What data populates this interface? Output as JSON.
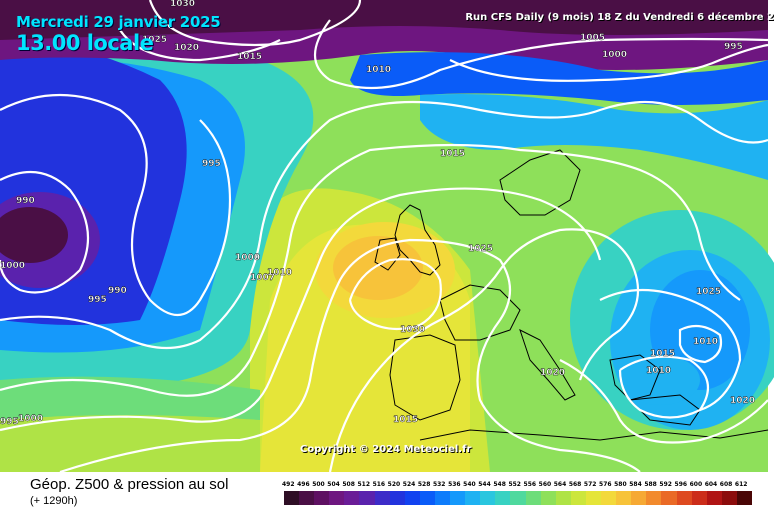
{
  "header": {
    "date": "Mercredi 29 janvier 2025",
    "time": "13.00 locale",
    "run": "Run CFS Daily (9 mois) 18 Z du Vendredi 6 décembre 2"
  },
  "copyright": "Copyright © 2024 Meteociel.fr",
  "footer": {
    "title": "Géop. Z500 & pression au sol",
    "subtitle": "(+ 1290h)"
  },
  "isobar_labels": [
    "1030",
    "1025",
    "1020",
    "1015",
    "1010",
    "1005",
    "1000",
    "995",
    "990",
    "995",
    "1000",
    "1005",
    "1010",
    "1015",
    "1020",
    "1025",
    "1030",
    "1000",
    "1007",
    "1010",
    "990",
    "995",
    "1015",
    "1020",
    "1025",
    "1010",
    "1015",
    "1010",
    "1020",
    "1015",
    "1000",
    "995"
  ],
  "legend": {
    "values": [
      "492",
      "496",
      "500",
      "504",
      "508",
      "512",
      "516",
      "520",
      "524",
      "528",
      "532",
      "536",
      "540",
      "544",
      "548",
      "552",
      "556",
      "560",
      "564",
      "568",
      "572",
      "576",
      "580",
      "584",
      "588",
      "592",
      "596",
      "600",
      "604",
      "608",
      "612"
    ],
    "colors": [
      "#2e0e25",
      "#4a0f45",
      "#5e1062",
      "#6e1680",
      "#6a1c97",
      "#5a22ad",
      "#3d2cc8",
      "#2233dd",
      "#1242f0",
      "#0a5cf8",
      "#0e7cfb",
      "#1599fb",
      "#1fb2f2",
      "#2ac6df",
      "#38d2c2",
      "#4fd99e",
      "#6ddd7a",
      "#8ee05a",
      "#afe346",
      "#cce63c",
      "#e5e539",
      "#f3d93b",
      "#f7c33a",
      "#f6a934",
      "#f28a2d",
      "#ea6a26",
      "#de4a20",
      "#cc2d1a",
      "#b01414",
      "#8c0c0c",
      "#4a0606"
    ]
  }
}
